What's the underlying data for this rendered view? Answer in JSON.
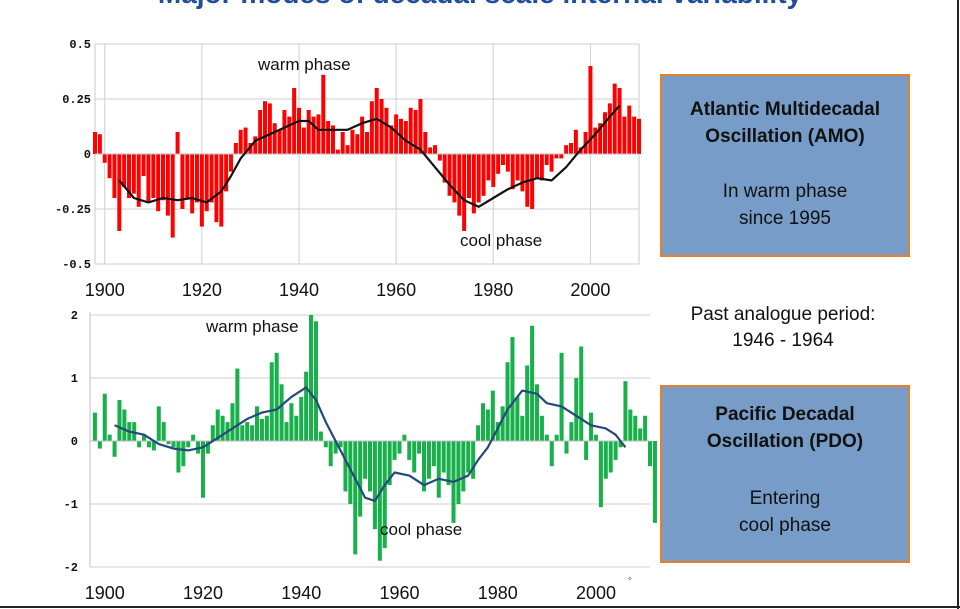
{
  "slide": {
    "title": "Major modes of decadal scale internal variability"
  },
  "amo_box": {
    "title_line1": "Atlantic Multidecadal",
    "title_line2": "Oscillation (AMO)",
    "note_line1": "In warm phase",
    "note_line2": "since 1995"
  },
  "analogue": {
    "line1": "Past analogue period:",
    "line2": "1946 - 1964"
  },
  "pdo_box": {
    "title_line1": "Pacific Decadal",
    "title_line2": "Oscillation (PDO)",
    "note_line1": "Entering",
    "note_line2": "cool phase"
  },
  "colors": {
    "amo_bars": "#ff0000",
    "pdo_bars": "#18b04a",
    "amo_smooth": "#111111",
    "pdo_smooth": "#244a7a",
    "box_fill": "#779cc7",
    "box_border": "#e8802a",
    "title": "#1f4e9a"
  },
  "chart_data": [
    {
      "type": "bar",
      "x_range": [
        1898,
        2010
      ],
      "ylim": [
        -0.5,
        0.5
      ],
      "yticks": [
        "0.5",
        "0.25",
        "0",
        "-0.25",
        "-0.5"
      ],
      "ytick_values": [
        0.5,
        0.25,
        0,
        -0.25,
        -0.5
      ],
      "xticks": [
        "1900",
        "1920",
        "1940",
        "1960",
        "1980",
        "2000"
      ],
      "xtick_values": [
        1900,
        1920,
        1940,
        1960,
        1980,
        2000
      ],
      "annotations": {
        "warm": "warm phase",
        "cool": "cool phase"
      },
      "start_year": 1898,
      "values": [
        0.1,
        0.09,
        -0.04,
        -0.11,
        -0.2,
        -0.35,
        -0.15,
        -0.2,
        -0.18,
        -0.24,
        -0.1,
        -0.22,
        -0.2,
        -0.26,
        -0.21,
        -0.28,
        -0.38,
        0.1,
        -0.25,
        -0.2,
        -0.27,
        -0.22,
        -0.33,
        -0.26,
        -0.22,
        -0.31,
        -0.33,
        -0.17,
        -0.08,
        0.05,
        0.11,
        0.12,
        0.05,
        0.08,
        0.2,
        0.24,
        0.23,
        0.14,
        0.11,
        0.2,
        0.17,
        0.3,
        0.21,
        0.12,
        0.2,
        0.17,
        0.18,
        0.36,
        0.15,
        0.13,
        0.02,
        0.1,
        0.04,
        0.11,
        0.09,
        0.17,
        0.1,
        0.24,
        0.3,
        0.25,
        0.21,
        0.13,
        0.18,
        0.16,
        0.15,
        0.21,
        0.2,
        0.25,
        0.1,
        0.03,
        0.04,
        -0.03,
        -0.13,
        -0.19,
        -0.22,
        -0.28,
        -0.35,
        -0.2,
        -0.27,
        -0.22,
        -0.19,
        -0.12,
        -0.15,
        -0.09,
        -0.05,
        -0.08,
        -0.16,
        -0.12,
        -0.17,
        -0.24,
        -0.25,
        -0.11,
        -0.12,
        -0.05,
        -0.08,
        -0.02,
        -0.02,
        0.04,
        0.05,
        0.11,
        0.03,
        0.1,
        0.4,
        0.12,
        0.14,
        0.19,
        0.23,
        0.32,
        0.3,
        0.17,
        0.22,
        0.17,
        0.16
      ],
      "smooth": [
        [
          1903,
          -0.12
        ],
        [
          1906,
          -0.2
        ],
        [
          1909,
          -0.22
        ],
        [
          1912,
          -0.2
        ],
        [
          1915,
          -0.21
        ],
        [
          1918,
          -0.2
        ],
        [
          1921,
          -0.22
        ],
        [
          1924,
          -0.17
        ],
        [
          1926,
          -0.1
        ],
        [
          1928,
          -0.02
        ],
        [
          1931,
          0.06
        ],
        [
          1934,
          0.09
        ],
        [
          1937,
          0.12
        ],
        [
          1940,
          0.15
        ],
        [
          1942,
          0.15
        ],
        [
          1944,
          0.11
        ],
        [
          1947,
          0.11
        ],
        [
          1950,
          0.11
        ],
        [
          1953,
          0.14
        ],
        [
          1956,
          0.16
        ],
        [
          1959,
          0.12
        ],
        [
          1962,
          0.06
        ],
        [
          1965,
          0.02
        ],
        [
          1968,
          -0.06
        ],
        [
          1971,
          -0.14
        ],
        [
          1974,
          -0.21
        ],
        [
          1977,
          -0.24
        ],
        [
          1980,
          -0.2
        ],
        [
          1983,
          -0.16
        ],
        [
          1986,
          -0.13
        ],
        [
          1989,
          -0.11
        ],
        [
          1992,
          -0.12
        ],
        [
          1995,
          -0.06
        ],
        [
          1998,
          0.02
        ],
        [
          2001,
          0.09
        ],
        [
          2004,
          0.17
        ],
        [
          2006,
          0.22
        ]
      ]
    },
    {
      "type": "bar",
      "x_range": [
        1897,
        2011
      ],
      "ylim": [
        -2,
        2
      ],
      "yticks": [
        "2",
        "1",
        "0",
        "-1",
        "-2"
      ],
      "ytick_values": [
        2,
        1,
        0,
        -1,
        -2
      ],
      "xticks": [
        "1900",
        "1920",
        "1940",
        "1960",
        "1980",
        "2000"
      ],
      "xtick_values": [
        1900,
        1920,
        1940,
        1960,
        1980,
        2000
      ],
      "annotations": {
        "warm": "warm phase",
        "cool": "cool phase"
      },
      "start_year": 1898,
      "values": [
        0.45,
        -0.12,
        0.75,
        0.1,
        -0.25,
        0.65,
        0.5,
        0.3,
        0.3,
        -0.1,
        0.1,
        -0.1,
        -0.15,
        0.55,
        0.3,
        -0.05,
        -0.1,
        -0.5,
        -0.4,
        -0.1,
        0.1,
        -0.2,
        -0.9,
        -0.2,
        0.25,
        0.5,
        0.4,
        0.3,
        0.6,
        1.15,
        0.25,
        0.3,
        0.25,
        0.55,
        0.35,
        0.4,
        1.25,
        1.4,
        0.9,
        0.3,
        0.6,
        0.4,
        0.7,
        1.1,
        2.0,
        1.9,
        0.15,
        -0.1,
        -0.4,
        -0.2,
        -0.1,
        -0.8,
        -1.0,
        -1.8,
        -1.2,
        -0.6,
        -0.8,
        -1.4,
        -1.9,
        -1.7,
        -0.7,
        -0.3,
        -0.2,
        0.1,
        -0.3,
        -0.5,
        -0.2,
        -0.8,
        -0.6,
        -0.4,
        -0.9,
        -0.5,
        -0.7,
        -1.3,
        -1.0,
        -0.8,
        -0.5,
        -0.6,
        0.25,
        0.6,
        0.5,
        0.8,
        0.3,
        0.55,
        1.25,
        1.65,
        0.7,
        0.4,
        1.2,
        1.83,
        0.9,
        0.4,
        0.1,
        -0.4,
        0.1,
        1.4,
        -0.2,
        0.3,
        1.0,
        1.5,
        -0.3,
        0.45,
        0.1,
        -1.05,
        -0.6,
        -0.5,
        -0.3,
        -0.1,
        0.95,
        0.5,
        0.4,
        0.2,
        0.4,
        -0.4,
        -1.3
      ],
      "smooth": [
        [
          1902,
          0.25
        ],
        [
          1905,
          0.15
        ],
        [
          1908,
          0.1
        ],
        [
          1911,
          -0.05
        ],
        [
          1914,
          -0.12
        ],
        [
          1917,
          -0.15
        ],
        [
          1920,
          -0.1
        ],
        [
          1923,
          0.05
        ],
        [
          1926,
          0.2
        ],
        [
          1929,
          0.35
        ],
        [
          1932,
          0.45
        ],
        [
          1935,
          0.5
        ],
        [
          1938,
          0.7
        ],
        [
          1941,
          0.85
        ],
        [
          1943,
          0.65
        ],
        [
          1945,
          0.3
        ],
        [
          1947,
          0.0
        ],
        [
          1949,
          -0.3
        ],
        [
          1951,
          -0.6
        ],
        [
          1953,
          -0.9
        ],
        [
          1955,
          -0.95
        ],
        [
          1957,
          -0.7
        ],
        [
          1959,
          -0.5
        ],
        [
          1962,
          -0.55
        ],
        [
          1965,
          -0.7
        ],
        [
          1968,
          -0.6
        ],
        [
          1971,
          -0.65
        ],
        [
          1974,
          -0.55
        ],
        [
          1976,
          -0.3
        ],
        [
          1978,
          -0.1
        ],
        [
          1980,
          0.2
        ],
        [
          1982,
          0.5
        ],
        [
          1985,
          0.8
        ],
        [
          1988,
          0.75
        ],
        [
          1990,
          0.6
        ],
        [
          1993,
          0.55
        ],
        [
          1996,
          0.4
        ],
        [
          1999,
          0.25
        ],
        [
          2002,
          0.2
        ],
        [
          2004,
          0.1
        ],
        [
          2006,
          -0.1
        ]
      ]
    }
  ]
}
